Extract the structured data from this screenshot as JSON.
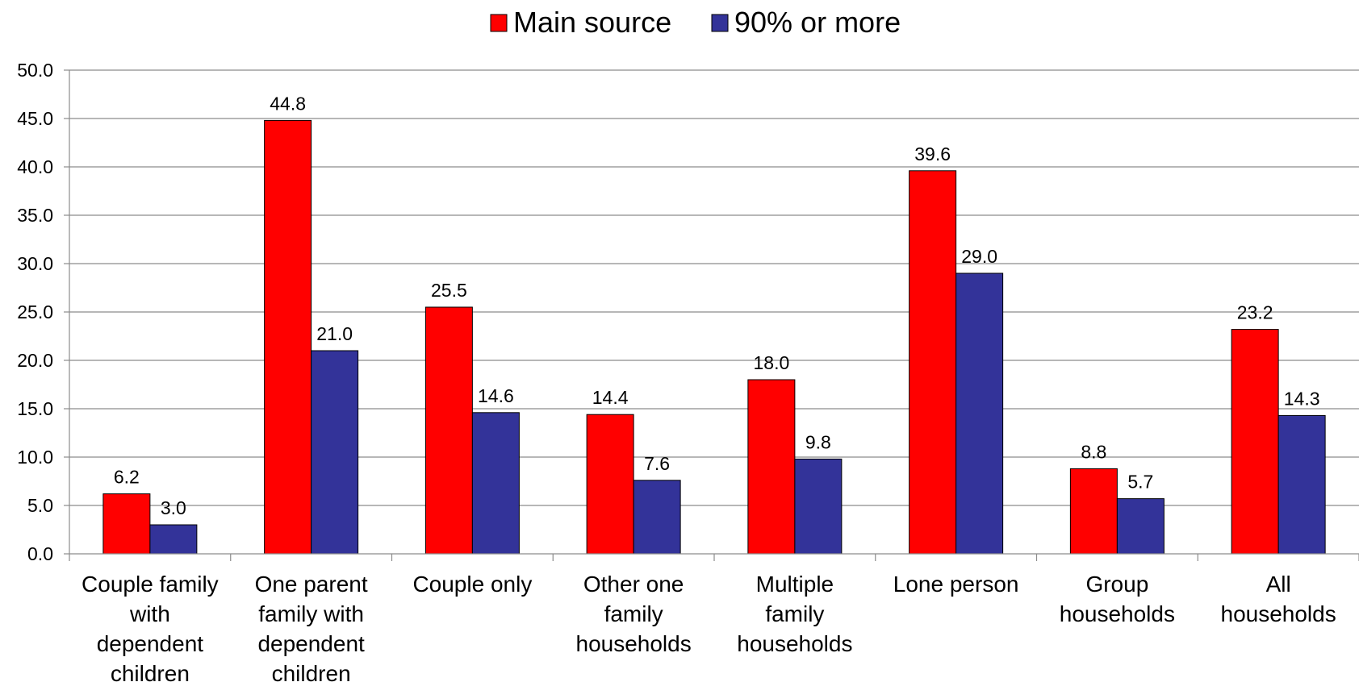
{
  "chart_data": {
    "type": "bar",
    "title": "",
    "xlabel": "",
    "ylabel": "",
    "ylim": [
      0,
      50
    ],
    "ytick_step": 5,
    "ytick_labels": [
      "0.0",
      "5.0",
      "10.0",
      "15.0",
      "20.0",
      "25.0",
      "30.0",
      "35.0",
      "40.0",
      "45.0",
      "50.0"
    ],
    "grid": true,
    "legend_position": "top-center",
    "categories": [
      [
        "Couple family",
        "with",
        "dependent",
        "children"
      ],
      [
        "One parent",
        "family with",
        "dependent",
        "children"
      ],
      [
        "Couple only"
      ],
      [
        "Other one",
        "family",
        "households"
      ],
      [
        "Multiple",
        "family",
        "households"
      ],
      [
        "Lone person"
      ],
      [
        "Group",
        "households"
      ],
      [
        "All",
        "households"
      ]
    ],
    "series": [
      {
        "name": "Main source",
        "color": "#ff0000",
        "values": [
          6.2,
          44.8,
          25.5,
          14.4,
          18.0,
          39.6,
          8.8,
          23.2
        ],
        "labels": [
          "6.2",
          "44.8",
          "25.5",
          "14.4",
          "18.0",
          "39.6",
          "8.8",
          "23.2"
        ]
      },
      {
        "name": "90% or more",
        "color": "#333399",
        "values": [
          3.0,
          21.0,
          14.6,
          7.6,
          9.8,
          29.0,
          5.7,
          14.3
        ],
        "labels": [
          "3.0",
          "21.0",
          "14.6",
          "7.6",
          "9.8",
          "29.0",
          "5.7",
          "14.3"
        ]
      }
    ]
  }
}
